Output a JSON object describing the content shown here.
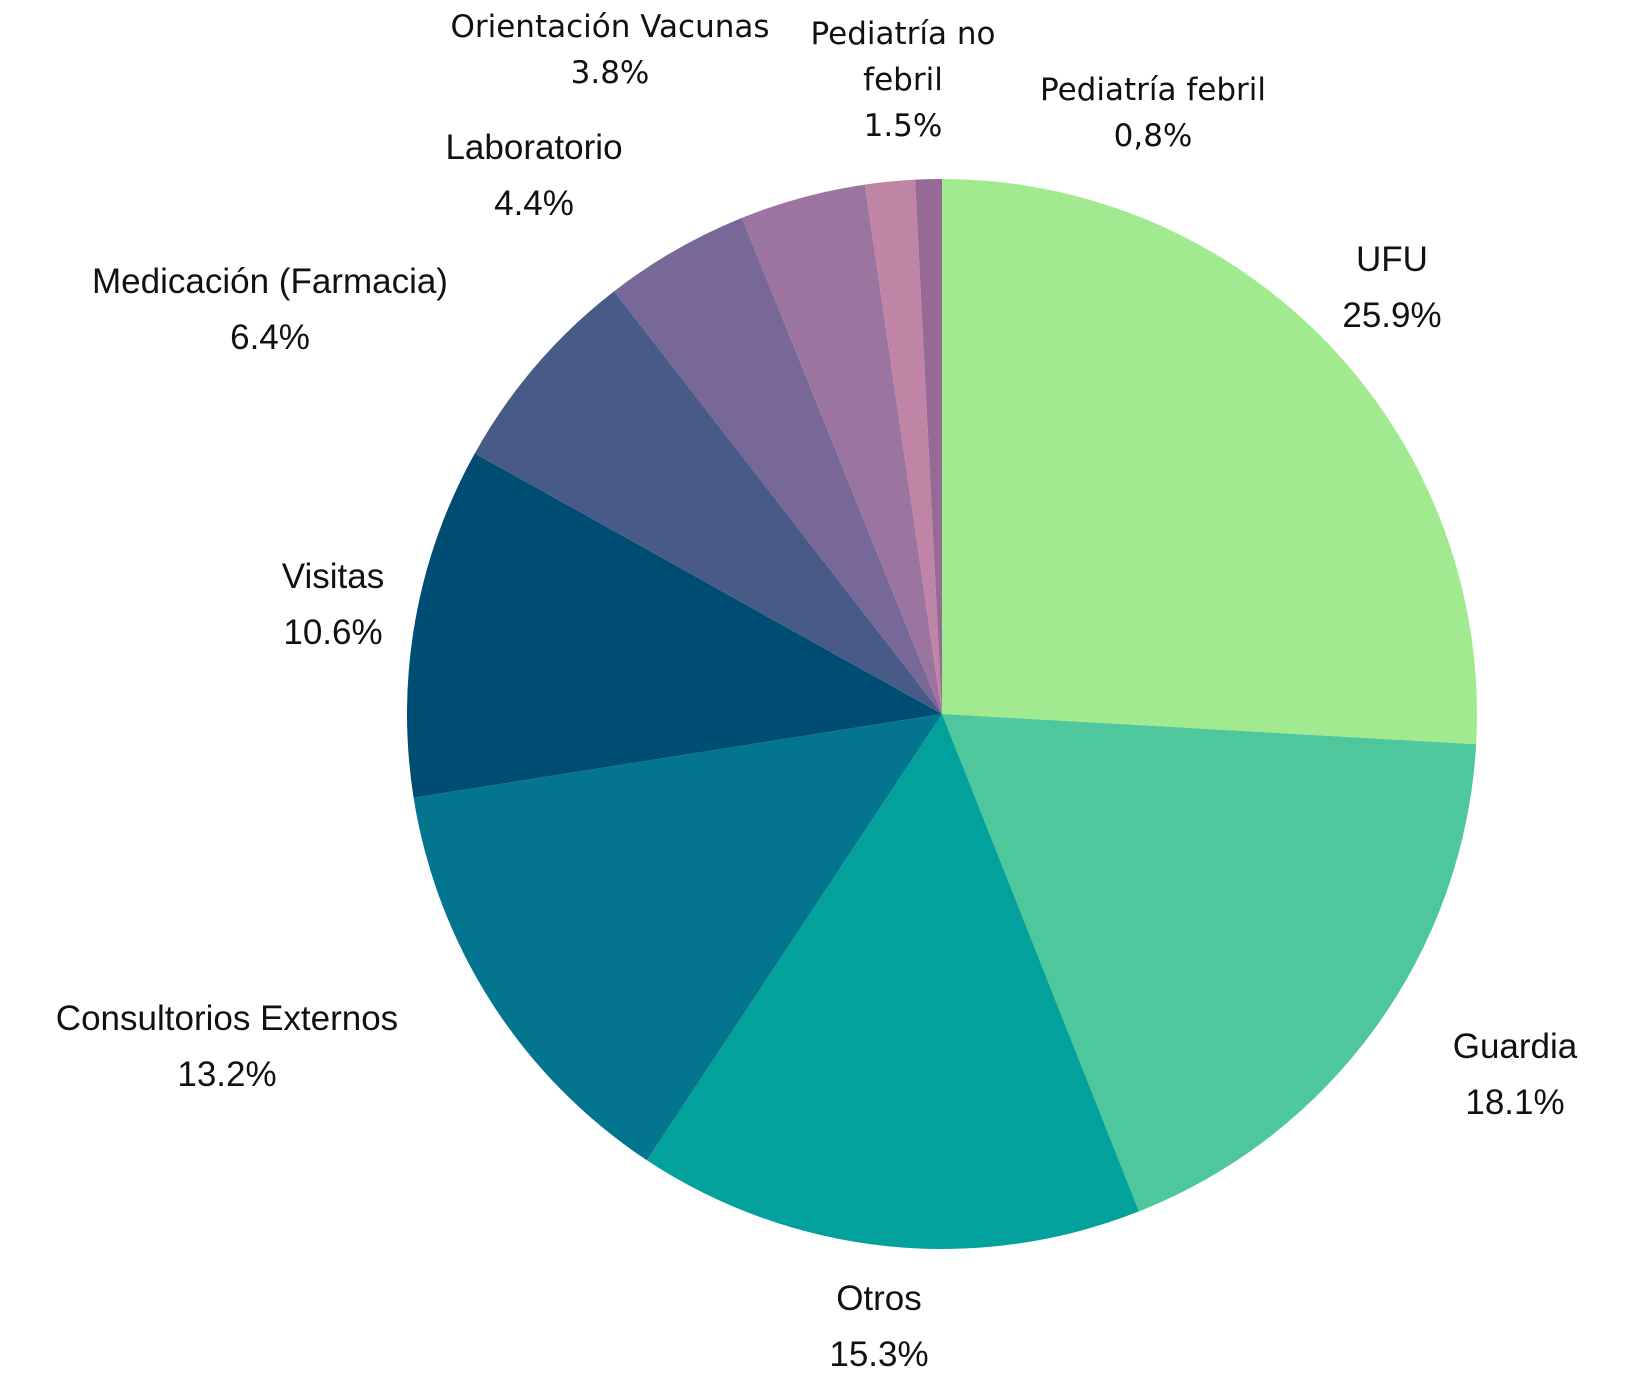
{
  "chart_data": {
    "type": "pie",
    "categories": [
      "UFU",
      "Guardia",
      "Otros",
      "Consultorios Externos",
      "Visitas",
      "Medicación (Farmacia)",
      "Laboratorio",
      "Orientación Vacunas",
      "Pediatría no febril",
      "Pediatría febril"
    ],
    "values": [
      25.9,
      18.1,
      15.3,
      13.2,
      10.6,
      6.4,
      4.4,
      3.8,
      1.5,
      0.8
    ],
    "value_labels": [
      "25.9%",
      "18.1%",
      "15.3%",
      "13.2%",
      "10.6%",
      "6.4%",
      "4.4%",
      "3.8%",
      "1.5%",
      "0,8%"
    ],
    "colors": [
      "#a2ea8f",
      "#4dc79b",
      "#02a19b",
      "#03758e",
      "#004d74",
      "#475a88",
      "#786898",
      "#9c74a0",
      "#c084a4",
      "#956a95"
    ]
  }
}
